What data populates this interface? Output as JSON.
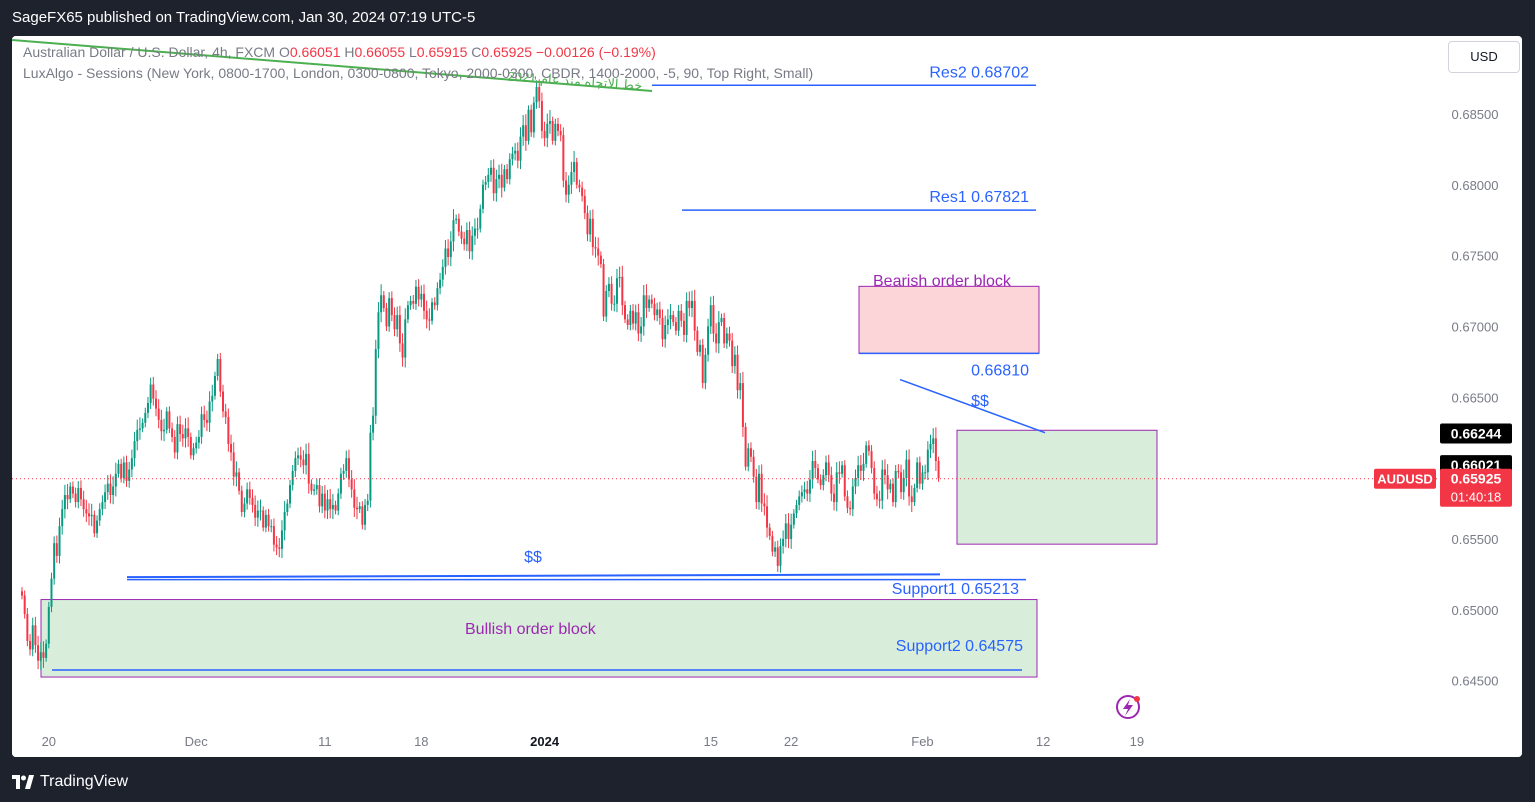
{
  "header": {
    "published_text": "SageFX65 published on TradingView.com, Jan 30, 2024 07:19 UTC-5"
  },
  "footer": {
    "brand": "TradingView",
    "logo_mark": "17"
  },
  "legend": {
    "symbol": "Australian Dollar / U.S. Dollar, 4h, FXCM",
    "o_label": "O",
    "o_value": "0.66051",
    "h_label": "H",
    "h_value": "0.66055",
    "l_label": "L",
    "l_value": "0.65915",
    "c_label": "C",
    "c_value": "0.65925",
    "change": "−0.00126 (−0.19%)",
    "indicator": "LuxAlgo - Sessions (New York, 0800-1700, London, 0300-0800, Tokyo, 2000-0300, CBDR, 1400-2000, -5, 90, Top Right, Small)"
  },
  "currency_button": "USD",
  "colors": {
    "up": "#089981",
    "down": "#f23645",
    "blue_line": "#2962ff",
    "green_line": "#4caf50",
    "purple": "#9c27b0",
    "bearish_fill": "#fcd5d9",
    "bullish_fill": "#d8eedb"
  },
  "chart_data": {
    "type": "candlestick",
    "symbol": "AUDUSD",
    "timeframe": "4h",
    "x_ticks": [
      {
        "label": "20",
        "bar": 10
      },
      {
        "label": "Dec",
        "bar": 65
      },
      {
        "label": "11",
        "bar": 113
      },
      {
        "label": "18",
        "bar": 149
      },
      {
        "label": "2024",
        "bar": 195
      },
      {
        "label": "15",
        "bar": 257
      },
      {
        "label": "22",
        "bar": 287
      },
      {
        "label": "Feb",
        "bar": 336
      },
      {
        "label": "12",
        "bar": 381
      },
      {
        "label": "19",
        "bar": 416
      }
    ],
    "y_ticks": [
      "0.68500",
      "0.68000",
      "0.67500",
      "0.67000",
      "0.66500",
      "0.66000",
      "0.65500",
      "0.65000",
      "0.64500"
    ],
    "ylim": [
      0.6425,
      0.6905
    ],
    "closes": [
      0.651,
      0.6497,
      0.6478,
      0.6472,
      0.6489,
      0.6475,
      0.6464,
      0.647,
      0.6466,
      0.6476,
      0.6502,
      0.6522,
      0.6547,
      0.6538,
      0.6559,
      0.6571,
      0.6581,
      0.6578,
      0.6587,
      0.6582,
      0.6576,
      0.6586,
      0.6578,
      0.6571,
      0.6568,
      0.6566,
      0.6567,
      0.6554,
      0.6563,
      0.6571,
      0.6576,
      0.6583,
      0.6589,
      0.6581,
      0.6587,
      0.6596,
      0.6603,
      0.6593,
      0.6604,
      0.6591,
      0.6599,
      0.6607,
      0.6619,
      0.6627,
      0.6628,
      0.6632,
      0.6639,
      0.6646,
      0.6659,
      0.6649,
      0.6642,
      0.6634,
      0.6626,
      0.6627,
      0.664,
      0.6628,
      0.6622,
      0.6611,
      0.6631,
      0.6624,
      0.6621,
      0.6628,
      0.6622,
      0.6609,
      0.6614,
      0.6618,
      0.6622,
      0.6638,
      0.6634,
      0.6632,
      0.6647,
      0.6651,
      0.6665,
      0.6677,
      0.6654,
      0.664,
      0.6636,
      0.6617,
      0.6611,
      0.6594,
      0.6597,
      0.6584,
      0.6569,
      0.6575,
      0.6585,
      0.6579,
      0.6574,
      0.6565,
      0.657,
      0.657,
      0.6558,
      0.6567,
      0.6559,
      0.6559,
      0.6546,
      0.6544,
      0.6543,
      0.6556,
      0.6569,
      0.6575,
      0.6588,
      0.6598,
      0.6607,
      0.6609,
      0.6606,
      0.6602,
      0.661,
      0.6589,
      0.6584,
      0.6585,
      0.6588,
      0.6573,
      0.6582,
      0.657,
      0.6578,
      0.6571,
      0.6574,
      0.657,
      0.6582,
      0.6596,
      0.6598,
      0.6607,
      0.6592,
      0.6585,
      0.6572,
      0.6571,
      0.6573,
      0.656,
      0.6574,
      0.6577,
      0.6625,
      0.6637,
      0.6684,
      0.671,
      0.6722,
      0.6713,
      0.67,
      0.672,
      0.6708,
      0.6698,
      0.6708,
      0.6688,
      0.6678,
      0.6705,
      0.6715,
      0.6718,
      0.6716,
      0.6728,
      0.6719,
      0.6723,
      0.6711,
      0.6705,
      0.6704,
      0.6717,
      0.6715,
      0.6727,
      0.6733,
      0.6742,
      0.6755,
      0.6749,
      0.676,
      0.6775,
      0.6776,
      0.6767,
      0.6762,
      0.6758,
      0.6768,
      0.6753,
      0.6764,
      0.6769,
      0.6769,
      0.6783,
      0.68,
      0.6802,
      0.6807,
      0.6812,
      0.6794,
      0.6804,
      0.6807,
      0.6798,
      0.6811,
      0.6804,
      0.6818,
      0.6822,
      0.6824,
      0.6817,
      0.6834,
      0.6842,
      0.6831,
      0.6853,
      0.6837,
      0.6858,
      0.6869,
      0.6859,
      0.6838,
      0.6833,
      0.6843,
      0.6845,
      0.6831,
      0.6843,
      0.6838,
      0.6835,
      0.6803,
      0.6793,
      0.68,
      0.6809,
      0.6816,
      0.68,
      0.6798,
      0.6792,
      0.678,
      0.6765,
      0.6776,
      0.6756,
      0.6755,
      0.675,
      0.6744,
      0.6707,
      0.6725,
      0.673,
      0.6716,
      0.6716,
      0.6734,
      0.6735,
      0.6715,
      0.6705,
      0.6701,
      0.6711,
      0.6702,
      0.671,
      0.6695,
      0.67,
      0.6722,
      0.6713,
      0.6719,
      0.6716,
      0.6708,
      0.6712,
      0.6706,
      0.6691,
      0.6701,
      0.6705,
      0.6708,
      0.6703,
      0.6697,
      0.6711,
      0.6704,
      0.6694,
      0.6718,
      0.6713,
      0.6718,
      0.6697,
      0.6682,
      0.6687,
      0.666,
      0.668,
      0.67,
      0.6715,
      0.6695,
      0.6688,
      0.6703,
      0.6706,
      0.6688,
      0.6695,
      0.669,
      0.6672,
      0.668,
      0.6655,
      0.666,
      0.6629,
      0.6601,
      0.6614,
      0.6608,
      0.6594,
      0.6576,
      0.6596,
      0.6575,
      0.6573,
      0.6558,
      0.6552,
      0.6541,
      0.6544,
      0.6531,
      0.6545,
      0.655,
      0.6561,
      0.655,
      0.656,
      0.6568,
      0.6574,
      0.658,
      0.6583,
      0.6585,
      0.6582,
      0.6592,
      0.6605,
      0.66,
      0.6592,
      0.6588,
      0.6595,
      0.6604,
      0.6595,
      0.6582,
      0.6576,
      0.6597,
      0.6596,
      0.6602,
      0.658,
      0.6572,
      0.6571,
      0.6587,
      0.6593,
      0.6602,
      0.6598,
      0.6603,
      0.6616,
      0.6612,
      0.66,
      0.6582,
      0.6578,
      0.6577,
      0.6599,
      0.6595,
      0.6585,
      0.6589,
      0.6576,
      0.6598,
      0.6597,
      0.6583,
      0.6593,
      0.6606,
      0.658,
      0.6576,
      0.6586,
      0.6604,
      0.6589,
      0.6597,
      0.6597,
      0.6613,
      0.6617,
      0.6621,
      0.6605,
      0.6593
    ],
    "price_labels": {
      "high_marker": "0.66244",
      "mid_marker": "0.66021",
      "last_symbol": "AUDUSD",
      "last_price": "0.65925",
      "countdown": "01:40:18"
    },
    "annotations": {
      "res2": {
        "label": "Res2  0.68702",
        "price": 0.68702
      },
      "res1": {
        "label": "Res1  0.67821",
        "price": 0.67821
      },
      "bearish_ob": {
        "label": "Bearish order block",
        "top": 0.67283,
        "bottom": 0.6681,
        "level_label": "0.66810"
      },
      "bullish_ob": {
        "label": "Bullish order block",
        "top": 0.65072,
        "bottom": 0.64525
      },
      "support1": {
        "label": "Support1  0.65213",
        "price": 0.65213
      },
      "support2": {
        "label": "Support2  0.64575",
        "price": 0.64575
      },
      "liquidity_low_label": "$$",
      "liquidity_high_label": "$$",
      "trendline_label": "خط الاتجاه منذ عام 2021",
      "range_box": {
        "top": 0.66267,
        "bottom": 0.65463
      }
    }
  }
}
